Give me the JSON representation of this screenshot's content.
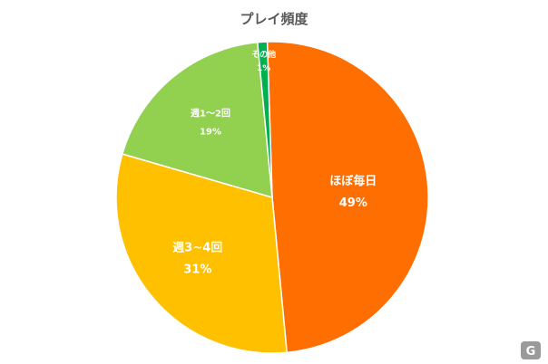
{
  "chart_data": {
    "type": "pie",
    "title": "プレイ頻度",
    "start_angle_deg": -1.8,
    "direction": "clockwise",
    "slices": [
      {
        "label": "ほぼ毎日",
        "value": 49,
        "value_label": "49%",
        "color": "#ff6e00"
      },
      {
        "label": "週3~4回",
        "value": 31,
        "value_label": "31%",
        "color": "#ffc000"
      },
      {
        "label": "週1～2回",
        "value": 19,
        "value_label": "19%",
        "color": "#92d050"
      },
      {
        "label": "その他",
        "value": 1,
        "value_label": "1%",
        "color": "#00b050"
      }
    ]
  },
  "watermark": {
    "glyph": "G"
  }
}
